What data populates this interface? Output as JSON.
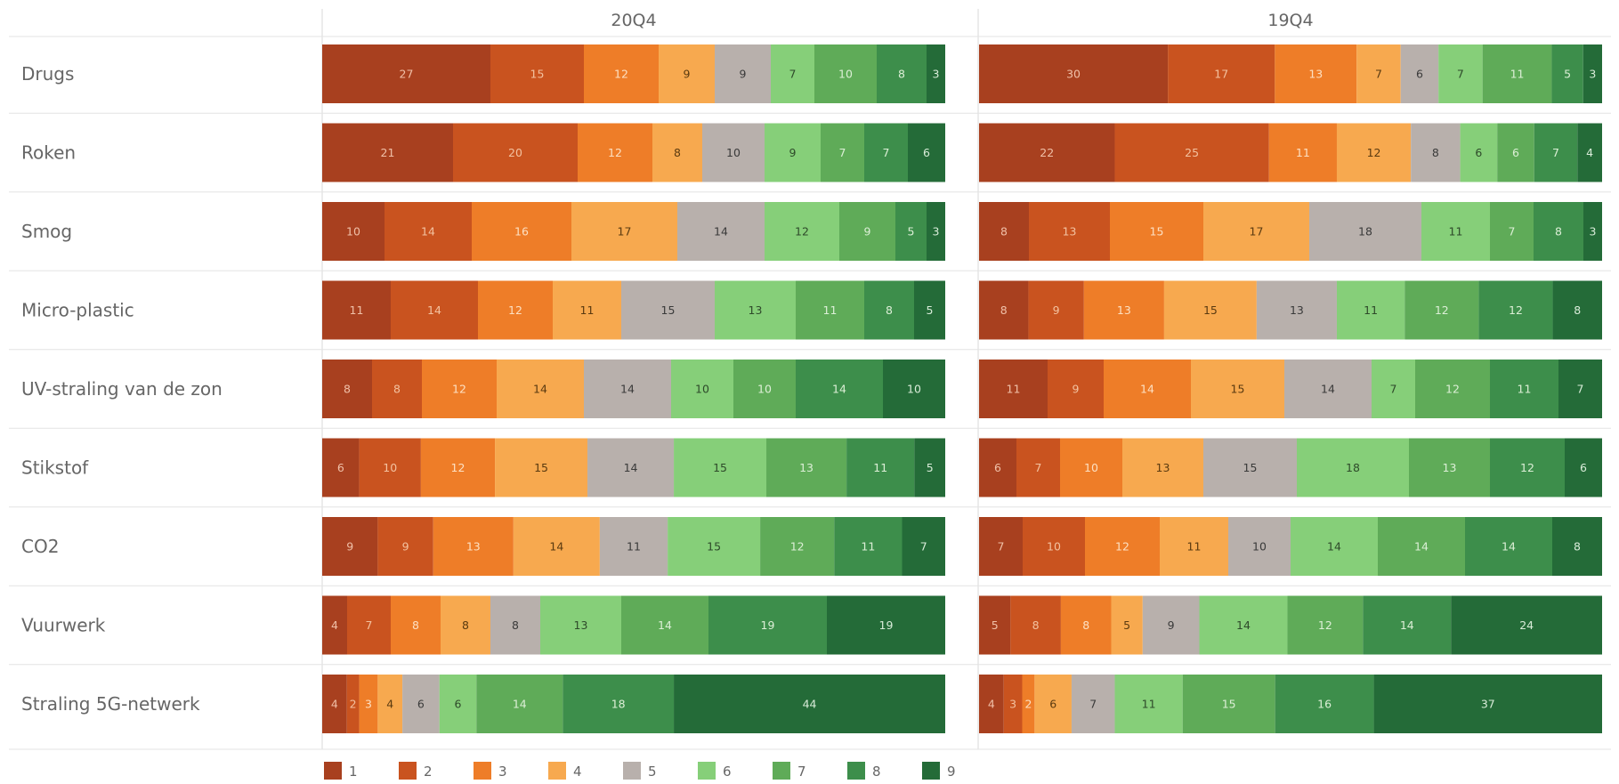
{
  "chart_data": {
    "type": "bar",
    "orientation": "horizontal",
    "stacked": "100%",
    "panels": [
      {
        "title": "20Q4",
        "series": [
          {
            "name": "1",
            "values": [
              27,
              21,
              10,
              11,
              8,
              6,
              9,
              4,
              4
            ]
          },
          {
            "name": "2",
            "values": [
              15,
              20,
              14,
              14,
              8,
              10,
              9,
              7,
              2
            ]
          },
          {
            "name": "3",
            "values": [
              12,
              12,
              16,
              12,
              12,
              12,
              13,
              8,
              3
            ]
          },
          {
            "name": "4",
            "values": [
              9,
              8,
              17,
              11,
              14,
              15,
              14,
              8,
              4
            ]
          },
          {
            "name": "5",
            "values": [
              9,
              10,
              14,
              15,
              14,
              14,
              11,
              8,
              6
            ]
          },
          {
            "name": "6",
            "values": [
              7,
              9,
              12,
              13,
              10,
              15,
              15,
              13,
              6
            ]
          },
          {
            "name": "7",
            "values": [
              10,
              7,
              9,
              11,
              10,
              13,
              12,
              14,
              14
            ]
          },
          {
            "name": "8",
            "values": [
              8,
              7,
              5,
              8,
              14,
              11,
              11,
              19,
              18
            ]
          },
          {
            "name": "9",
            "values": [
              3,
              6,
              3,
              5,
              10,
              5,
              7,
              19,
              44
            ]
          }
        ]
      },
      {
        "title": "19Q4",
        "series": [
          {
            "name": "1",
            "values": [
              30,
              22,
              8,
              8,
              11,
              6,
              7,
              5,
              4
            ]
          },
          {
            "name": "2",
            "values": [
              17,
              25,
              13,
              9,
              9,
              7,
              10,
              8,
              3
            ]
          },
          {
            "name": "3",
            "values": [
              13,
              11,
              15,
              13,
              14,
              10,
              12,
              8,
              2
            ]
          },
          {
            "name": "4",
            "values": [
              7,
              12,
              17,
              15,
              15,
              13,
              11,
              5,
              6
            ]
          },
          {
            "name": "5",
            "values": [
              6,
              8,
              18,
              13,
              14,
              15,
              10,
              9,
              7
            ]
          },
          {
            "name": "6",
            "values": [
              7,
              6,
              11,
              11,
              7,
              18,
              14,
              14,
              11
            ]
          },
          {
            "name": "7",
            "values": [
              11,
              6,
              7,
              12,
              12,
              13,
              14,
              12,
              15
            ]
          },
          {
            "name": "8",
            "values": [
              5,
              7,
              8,
              12,
              11,
              12,
              14,
              14,
              16
            ]
          },
          {
            "name": "9",
            "values": [
              3,
              4,
              3,
              8,
              7,
              6,
              8,
              24,
              37
            ]
          }
        ]
      }
    ],
    "categories": [
      "Drugs",
      "Roken",
      "Smog",
      "Micro-plastic",
      "UV-straling van de zon",
      "Stikstof",
      "CO2",
      "Vuurwerk",
      "Straling 5G-netwerk"
    ],
    "legend": {
      "position": "bottom",
      "items": [
        "1",
        "2",
        "3",
        "4",
        "5",
        "6",
        "7",
        "8",
        "9"
      ]
    },
    "colors": [
      "#a8401f",
      "#c9531f",
      "#ee7d28",
      "#f7a94f",
      "#b8b0ac",
      "#86cf79",
      "#5fab58",
      "#3d8e4b",
      "#246b38"
    ],
    "label_colors": [
      "#f0c0a8",
      "#f3c2a0",
      "#fde0c2",
      "#5a3a10",
      "#3a3a3a",
      "#2e4a2a",
      "#dcefd6",
      "#dcefd6",
      "#d9ecd9"
    ],
    "xlim": [
      0,
      100
    ],
    "grid": false
  }
}
